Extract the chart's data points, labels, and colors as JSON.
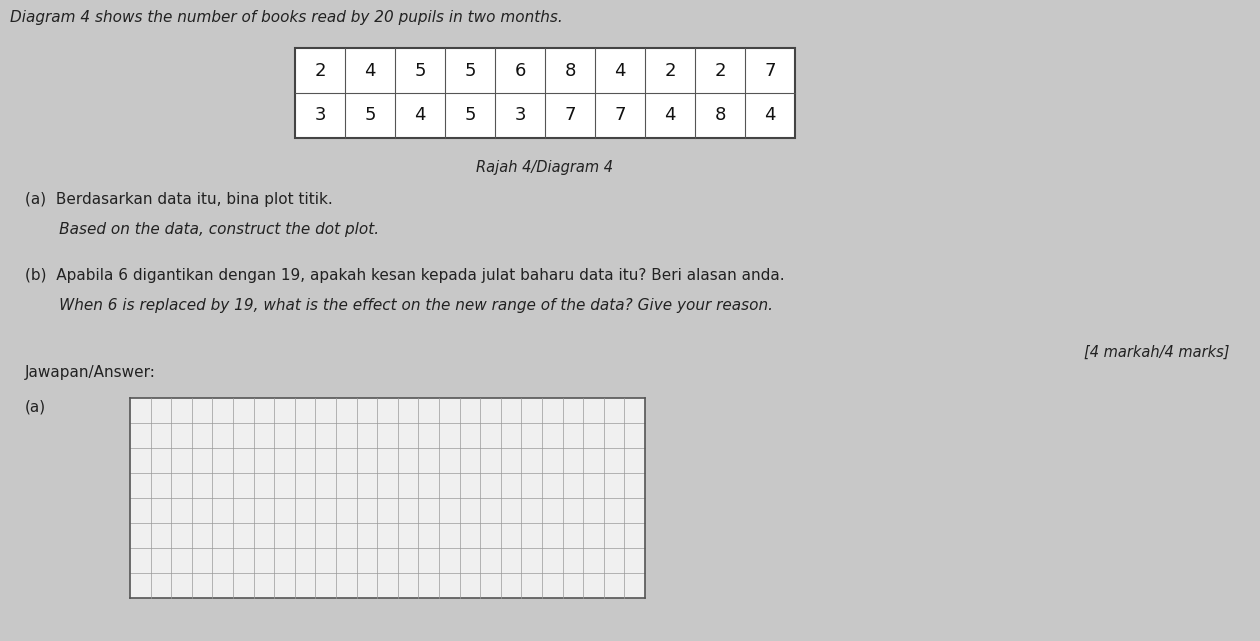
{
  "title_line": "Diagram 4 shows the number of books read by 20 pupils in two months.",
  "diagram_label": "Rajah 4/Diagram 4",
  "data_row1": [
    2,
    4,
    5,
    5,
    6,
    8,
    4,
    2,
    2,
    7
  ],
  "data_row2": [
    3,
    5,
    4,
    5,
    3,
    7,
    7,
    4,
    8,
    4
  ],
  "question_a_malay": "(a)  Berdasarkan data itu, bina plot titik.",
  "question_a_english": "       Based on the data, construct the dot plot.",
  "question_b_malay": "(b)  Apabila 6 digantikan dengan 19, apakah kesan kepada julat baharu data itu? Beri alasan anda.",
  "question_b_english": "       When 6 is replaced by 19, what is the effect on the new range of the data? Give your reason.",
  "marks": "[4 markah/4 marks]",
  "answer_label": "Jawapan/Answer:",
  "answer_a_label": "(a)",
  "bg_color": "#c8c8c8",
  "table_bg": "#ffffff",
  "grid_color": "#999999",
  "grid_bg": "#e8e8e8",
  "grid_rows": 8,
  "grid_cols": 25,
  "text_color": "#222222"
}
